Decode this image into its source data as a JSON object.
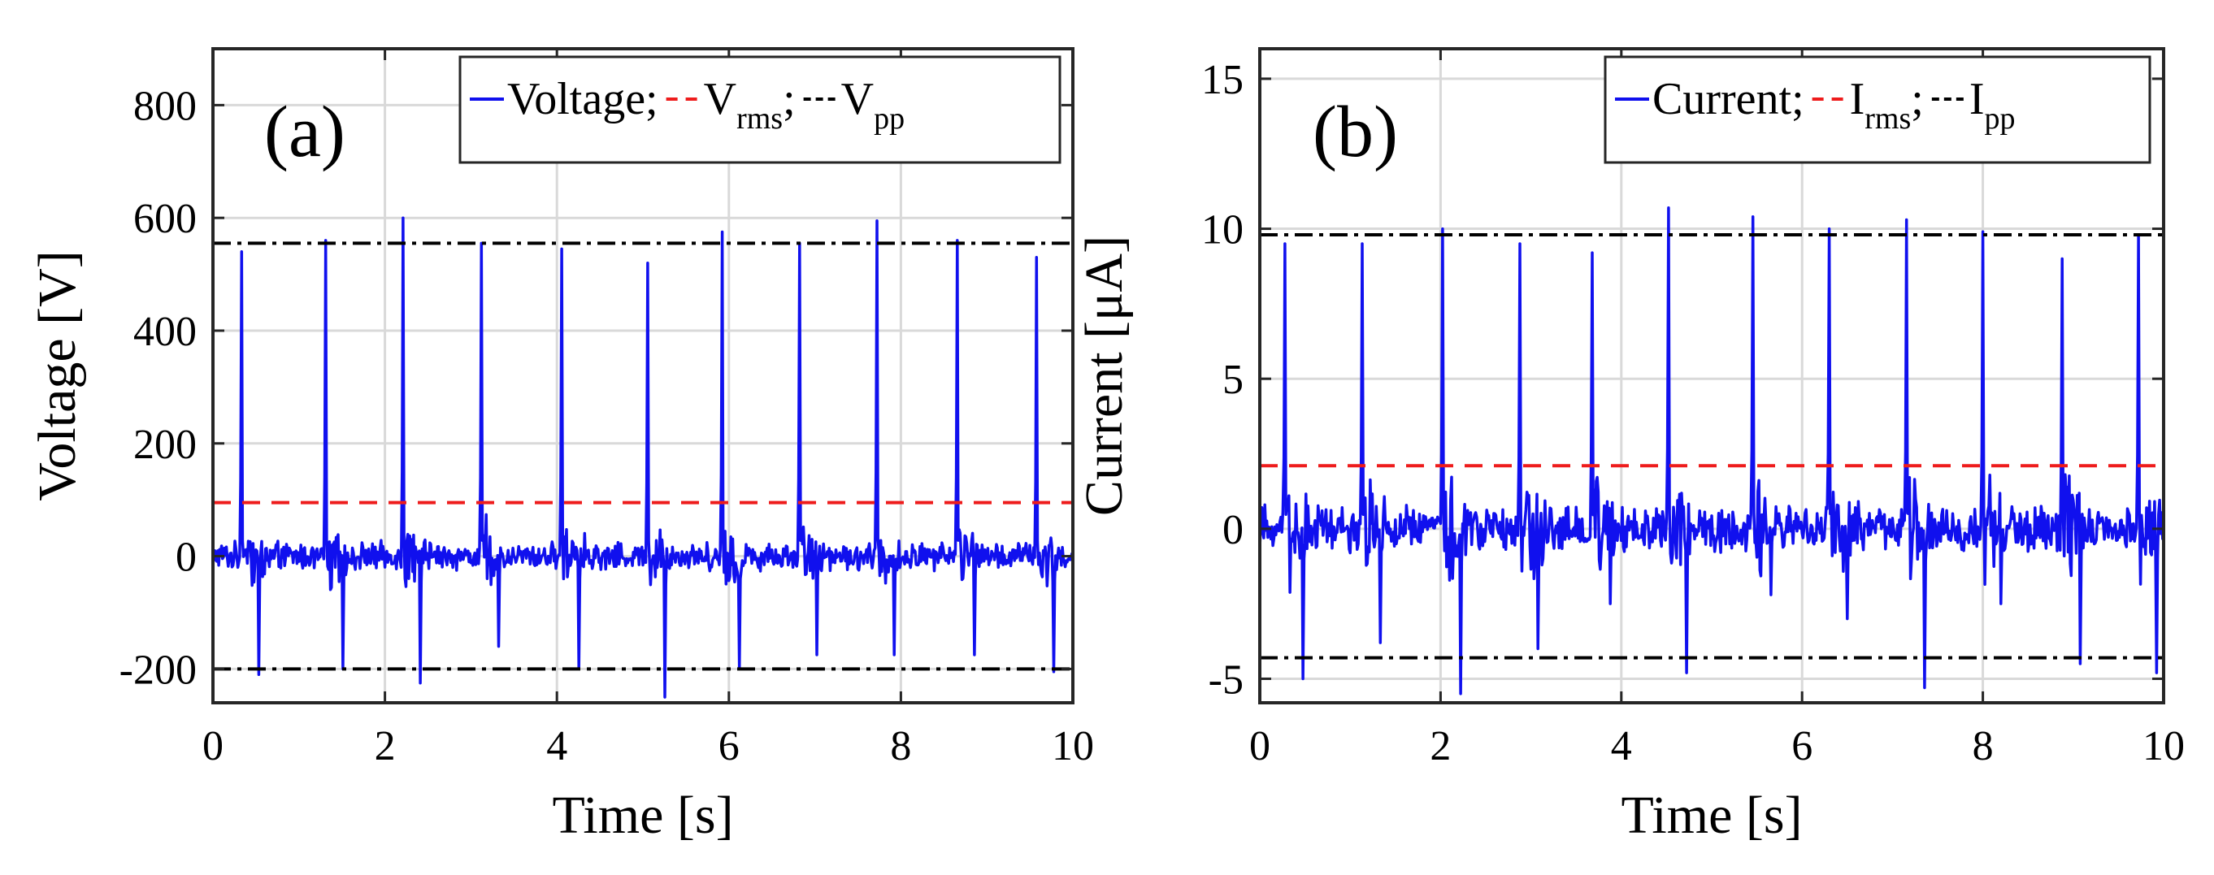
{
  "chart_data": [
    {
      "type": "line",
      "panel_label": "(a)",
      "xlabel": "Time [s]",
      "ylabel": "Voltage [V]",
      "xlim": [
        0,
        10
      ],
      "ylim": [
        -260,
        900
      ],
      "xticks": [
        0,
        2,
        4,
        6,
        8,
        10
      ],
      "yticks": [
        -200,
        0,
        200,
        400,
        600,
        800
      ],
      "xtick_labels": [
        "0",
        "2",
        "4",
        "6",
        "8",
        "10"
      ],
      "ytick_labels": [
        "-200",
        "0",
        "200",
        "400",
        "600",
        "800"
      ],
      "grid": true,
      "legend": {
        "placement": "top-right",
        "entries": [
          {
            "text": "Voltage;",
            "sub": ""
          },
          {
            "text": "V",
            "sub": "rms",
            "suffix": ";"
          },
          {
            "text": "V",
            "sub": "pp",
            "suffix": ""
          }
        ]
      },
      "colors": {
        "signal": "#1010ee",
        "rms": "#ee1c1c",
        "pp": "#000000"
      },
      "rms": 95,
      "pp_high": 555,
      "pp_low": -200,
      "noise_amplitude": 28,
      "peaks": [
        {
          "t": 0.33,
          "v": 540,
          "neg": -210
        },
        {
          "t": 1.31,
          "v": 560,
          "neg": -200
        },
        {
          "t": 2.21,
          "v": 600,
          "neg": -225
        },
        {
          "t": 3.12,
          "v": 555,
          "neg": -160
        },
        {
          "t": 4.05,
          "v": 545,
          "neg": -200
        },
        {
          "t": 5.05,
          "v": 520,
          "neg": -250
        },
        {
          "t": 5.92,
          "v": 575,
          "neg": -200
        },
        {
          "t": 6.82,
          "v": 555,
          "neg": -175
        },
        {
          "t": 7.72,
          "v": 595,
          "neg": -175
        },
        {
          "t": 8.65,
          "v": 560,
          "neg": -175
        },
        {
          "t": 9.58,
          "v": 530,
          "neg": -205
        }
      ]
    },
    {
      "type": "line",
      "panel_label": "(b)",
      "xlabel": "Time [s]",
      "ylabel": "Current [μA]",
      "xlim": [
        0,
        10
      ],
      "ylim": [
        -5.8,
        16
      ],
      "xticks": [
        0,
        2,
        4,
        6,
        8,
        10
      ],
      "yticks": [
        -5,
        0,
        5,
        10,
        15
      ],
      "xtick_labels": [
        "0",
        "2",
        "4",
        "6",
        "8",
        "10"
      ],
      "ytick_labels": [
        "-5",
        "0",
        "5",
        "10",
        "15"
      ],
      "grid": true,
      "legend": {
        "placement": "top-right",
        "entries": [
          {
            "text": "Current;",
            "sub": ""
          },
          {
            "text": "I",
            "sub": "rms",
            "suffix": ";"
          },
          {
            "text": "I",
            "sub": "pp",
            "suffix": ""
          }
        ]
      },
      "colors": {
        "signal": "#1010ee",
        "rms": "#ee1c1c",
        "pp": "#000000"
      },
      "rms": 2.1,
      "pp_high": 9.8,
      "pp_low": -4.3,
      "noise_amplitude": 0.9,
      "peaks": [
        {
          "t": 0.28,
          "v": 9.5,
          "neg": -5.0
        },
        {
          "t": 1.13,
          "v": 9.5,
          "neg": -3.8
        },
        {
          "t": 2.02,
          "v": 10.0,
          "neg": -5.5
        },
        {
          "t": 2.88,
          "v": 9.5,
          "neg": -4.0
        },
        {
          "t": 3.68,
          "v": 9.2,
          "neg": -2.5
        },
        {
          "t": 4.52,
          "v": 10.7,
          "neg": -4.8
        },
        {
          "t": 5.45,
          "v": 10.4,
          "neg": -2.2
        },
        {
          "t": 6.3,
          "v": 10.0,
          "neg": -3.0
        },
        {
          "t": 7.15,
          "v": 10.3,
          "neg": -5.3
        },
        {
          "t": 8.0,
          "v": 9.9,
          "neg": -2.5
        },
        {
          "t": 8.88,
          "v": 9.0,
          "neg": -4.5
        },
        {
          "t": 9.72,
          "v": 9.8,
          "neg": -4.8
        }
      ]
    }
  ]
}
